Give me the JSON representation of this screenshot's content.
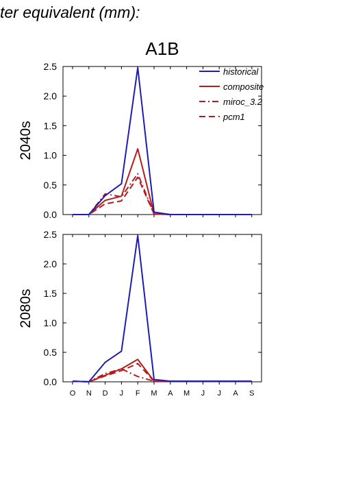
{
  "header": {
    "title": "ter equivalent (mm):"
  },
  "colors": {
    "historical": "#1c1cb4",
    "model": "#b41c1c"
  },
  "chart_data": [
    {
      "type": "line",
      "title": "A1B",
      "ylabel": "2040s",
      "categories": [
        "O",
        "N",
        "D",
        "J",
        "F",
        "M",
        "A",
        "M",
        "J",
        "J",
        "A",
        "S"
      ],
      "ylim": [
        0,
        2.5
      ],
      "yticks": [
        "0.0",
        "0.5",
        "1.0",
        "1.5",
        "2.0",
        "2.5"
      ],
      "series": [
        {
          "name": "historical",
          "style": "solid",
          "color": "#1c1cb4",
          "values": [
            0,
            0,
            0.32,
            0.52,
            2.48,
            0.04,
            0,
            0,
            0,
            0,
            0,
            0
          ]
        },
        {
          "name": "composite",
          "style": "solid",
          "color": "#b41c1c",
          "values": [
            0,
            0,
            0.24,
            0.31,
            1.11,
            0.01,
            0,
            0,
            0,
            0,
            0,
            0
          ]
        },
        {
          "name": "miroc_3.2",
          "style": "dashdot",
          "color": "#b41c1c",
          "values": [
            0,
            0,
            0.35,
            0.3,
            0.69,
            0.01,
            0,
            0,
            0,
            0,
            0,
            0
          ]
        },
        {
          "name": "pcm1",
          "style": "dash",
          "color": "#b41c1c",
          "values": [
            0,
            0,
            0.18,
            0.23,
            0.63,
            0.01,
            0,
            0,
            0,
            0,
            0,
            0
          ]
        }
      ]
    },
    {
      "type": "line",
      "title": "",
      "ylabel": "2080s",
      "categories": [
        "O",
        "N",
        "D",
        "J",
        "F",
        "M",
        "A",
        "M",
        "J",
        "J",
        "A",
        "S"
      ],
      "ylim": [
        0,
        2.5
      ],
      "yticks": [
        "0.0",
        "0.5",
        "1.0",
        "1.5",
        "2.0",
        "2.5"
      ],
      "series": [
        {
          "name": "historical",
          "style": "solid",
          "color": "#1c1cb4",
          "values": [
            0.01,
            0,
            0.33,
            0.52,
            2.48,
            0.04,
            0.01,
            0.01,
            0.01,
            0.01,
            0.01,
            0.01
          ]
        },
        {
          "name": "composite",
          "style": "solid",
          "color": "#b41c1c",
          "values": [
            0.01,
            0,
            0.11,
            0.22,
            0.38,
            0.01,
            0.01,
            0.01,
            0.01,
            0.01,
            0.01,
            0.01
          ]
        },
        {
          "name": "miroc_3.2",
          "style": "dashdot",
          "color": "#b41c1c",
          "values": [
            0.01,
            0,
            0.14,
            0.22,
            0.09,
            0.01,
            0.01,
            0.01,
            0.01,
            0.01,
            0.01,
            0.01
          ]
        },
        {
          "name": "pcm1",
          "style": "dash",
          "color": "#b41c1c",
          "values": [
            0.01,
            0,
            0.1,
            0.19,
            0.31,
            0.01,
            0.01,
            0.01,
            0.01,
            0.01,
            0.01,
            0.01
          ]
        }
      ]
    }
  ]
}
